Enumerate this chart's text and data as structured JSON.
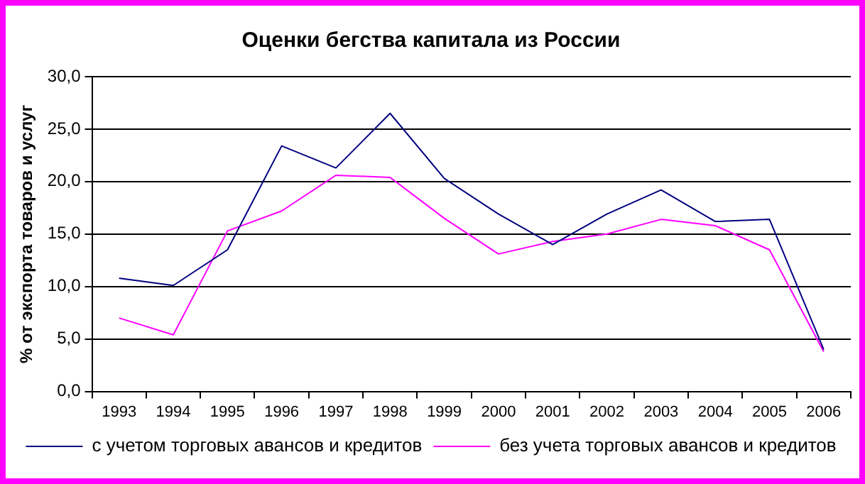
{
  "chart_data": {
    "type": "line",
    "title": "Оценки бегства капитала из России",
    "ylabel": "% от экспорта товаров и услуг",
    "categories": [
      "1993",
      "1994",
      "1995",
      "1996",
      "1997",
      "1998",
      "1999",
      "2000",
      "2001",
      "2002",
      "2003",
      "2004",
      "2005",
      "2006"
    ],
    "series": [
      {
        "name": "с учетом торговых авансов и кредитов",
        "color": "#000080",
        "values": [
          10.8,
          10.1,
          13.5,
          23.4,
          21.3,
          26.5,
          20.3,
          16.9,
          14.0,
          16.9,
          19.2,
          16.2,
          16.4,
          4.0
        ]
      },
      {
        "name": "без учета торговых авансов и кредитов",
        "color": "#ff00ff",
        "values": [
          7.0,
          5.4,
          15.3,
          17.2,
          20.6,
          20.4,
          16.5,
          13.1,
          14.3,
          15.0,
          16.4,
          15.8,
          13.5,
          3.8
        ]
      }
    ],
    "ylim": [
      0,
      30
    ],
    "yticks": [
      {
        "value": 0,
        "label": "0,0"
      },
      {
        "value": 5,
        "label": "5,0"
      },
      {
        "value": 10,
        "label": "10,0"
      },
      {
        "value": 15,
        "label": "15,0"
      },
      {
        "value": 20,
        "label": "20,0"
      },
      {
        "value": 25,
        "label": "25,0"
      },
      {
        "value": 30,
        "label": "30,0"
      }
    ],
    "grid": "y",
    "legend": "bottom",
    "marker": "none",
    "line_style": "solid"
  }
}
